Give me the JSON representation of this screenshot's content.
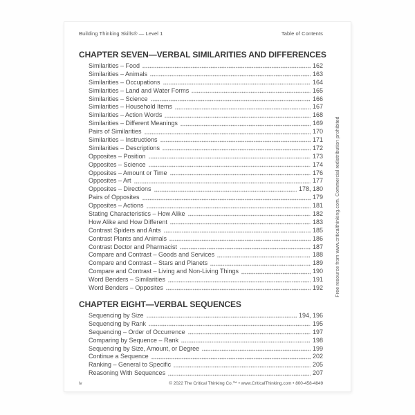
{
  "doc": {
    "header_left": "Building Thinking Skills® — Level 1",
    "header_right": "Table of Contents",
    "footer_left": "iv",
    "footer_right": "© 2022 The Critical Thinking Co.™ • www.CriticalThinking.com • 800-458-4849",
    "side_note": "Free resource from www.criticalthinking.com. Commercial redistribution prohibited"
  },
  "chapters": [
    {
      "title": "CHAPTER SEVEN—VERBAL SIMILARITIES AND DIFFERENCES",
      "entries": [
        {
          "label": "Similarities – Food",
          "page": "162"
        },
        {
          "label": "Similarities – Animals",
          "page": "163"
        },
        {
          "label": "Similarities – Occupations",
          "page": "164"
        },
        {
          "label": "Similarities – Land and Water Forms",
          "page": "165"
        },
        {
          "label": "Similarities – Science",
          "page": "166"
        },
        {
          "label": "Similarities – Household Items",
          "page": "167"
        },
        {
          "label": "Similarities – Action Words",
          "page": "168"
        },
        {
          "label": "Similarities – Different Meanings",
          "page": "169"
        },
        {
          "label": "Pairs of Similarities",
          "page": "170"
        },
        {
          "label": "Similarities – Instructions",
          "page": "171"
        },
        {
          "label": "Similarities – Descriptions",
          "page": "172"
        },
        {
          "label": "Opposites – Position",
          "page": "173"
        },
        {
          "label": "Opposites – Science",
          "page": "174"
        },
        {
          "label": "Opposites – Amount or Time",
          "page": "176"
        },
        {
          "label": "Opposites – Art",
          "page": "177"
        },
        {
          "label": "Opposites – Directions",
          "page": "178, 180"
        },
        {
          "label": "Pairs of Opposites",
          "page": "179"
        },
        {
          "label": "Opposites – Actions",
          "page": "181"
        },
        {
          "label": "Stating Characteristics – How Alike",
          "page": "182"
        },
        {
          "label": "How Alike and How Different",
          "page": "183"
        },
        {
          "label": "Contrast Spiders and Ants",
          "page": "185"
        },
        {
          "label": "Contrast Plants and Animals",
          "page": "186"
        },
        {
          "label": "Contrast Doctor and Pharmacist",
          "page": "187"
        },
        {
          "label": "Compare and Contrast – Goods and Services",
          "page": "188"
        },
        {
          "label": "Compare and Contrast – Stars and Planets",
          "page": "189"
        },
        {
          "label": "Compare and Contrast – Living and Non-Living Things",
          "page": "190"
        },
        {
          "label": "Word Benders – Similarities",
          "page": "191"
        },
        {
          "label": "Word Benders – Opposites",
          "page": "192"
        }
      ]
    },
    {
      "title": "CHAPTER EIGHT—VERBAL SEQUENCES",
      "entries": [
        {
          "label": "Sequencing by Size",
          "page": "194, 196"
        },
        {
          "label": "Sequencing by Rank",
          "page": "195"
        },
        {
          "label": "Sequencing – Order of Occurrence",
          "page": "197"
        },
        {
          "label": "Comparing by Sequence – Rank",
          "page": "198"
        },
        {
          "label": "Sequencing by Size, Amount, or Degree",
          "page": "199"
        },
        {
          "label": "Continue a Sequence",
          "page": "202"
        },
        {
          "label": "Ranking – General to Specific",
          "page": "205"
        },
        {
          "label": "Reasoning With Sequences",
          "page": "207"
        }
      ]
    }
  ]
}
